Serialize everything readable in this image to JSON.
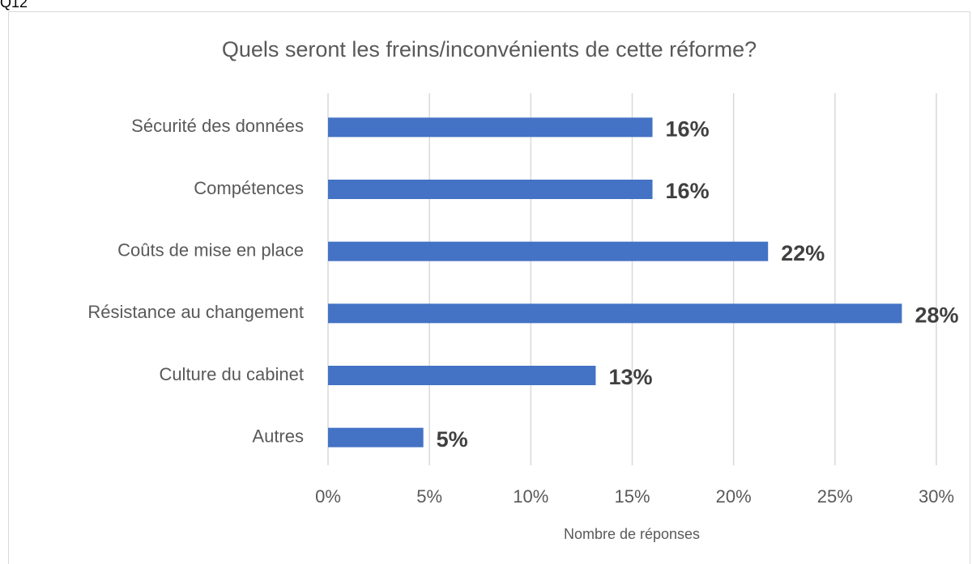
{
  "page_label": "Q12",
  "chart_data": {
    "type": "bar",
    "orientation": "horizontal",
    "title": "Quels seront les freins/inconvénients de cette réforme?",
    "x_label": "Nombre de réponses",
    "categories": [
      "Sécurité des données",
      "Compétences",
      "Coûts de mise en place",
      "Résistance au changement",
      "Culture du cabinet",
      "Autres"
    ],
    "values": [
      16,
      16,
      21.7,
      28.3,
      13.2,
      4.7
    ],
    "value_labels": [
      "16%",
      "16%",
      "22%",
      "28%",
      "13%",
      "5%"
    ],
    "color": "#4472c4",
    "xlim": [
      0,
      30
    ],
    "xticks": [
      {
        "value": 0,
        "label": "0%"
      },
      {
        "value": 5,
        "label": "5%"
      },
      {
        "value": 10,
        "label": "10%"
      },
      {
        "value": 15,
        "label": "15%"
      },
      {
        "value": 20,
        "label": "20%"
      },
      {
        "value": 25,
        "label": "25%"
      },
      {
        "value": 30,
        "label": "30%"
      }
    ],
    "grid": true
  }
}
